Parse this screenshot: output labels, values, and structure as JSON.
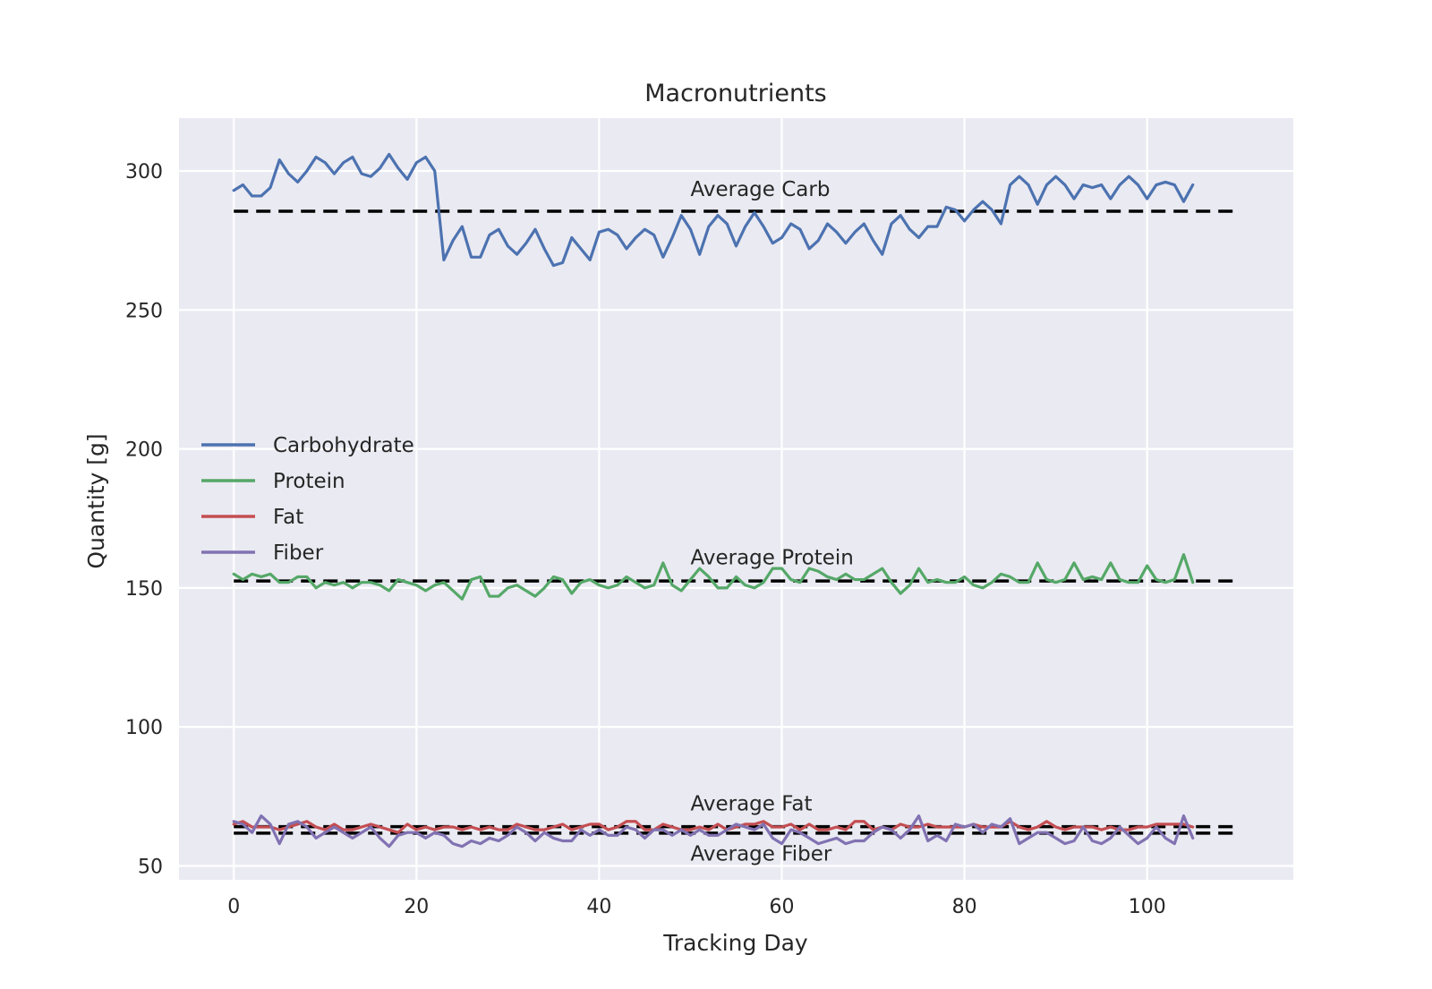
{
  "chart_data": {
    "type": "line",
    "title": "Macronutrients",
    "xlabel": "Tracking Day",
    "ylabel": "Quantity [g]",
    "xlim": [
      -6,
      116
    ],
    "ylim": [
      45,
      319
    ],
    "xticks": [
      0,
      20,
      40,
      60,
      80,
      100
    ],
    "yticks": [
      50,
      100,
      150,
      200,
      250,
      300
    ],
    "grid": true,
    "legend_position": "center-left",
    "background_color": "#eaeaf2",
    "grid_color": "#ffffff",
    "series": [
      {
        "name": "Carbohydrate",
        "color": "#4c72b0",
        "values": [
          293,
          295,
          291,
          291,
          294,
          304,
          299,
          296,
          300,
          305,
          303,
          299,
          303,
          305,
          299,
          298,
          301,
          306,
          301,
          297,
          303,
          305,
          300,
          268,
          275,
          280,
          269,
          269,
          277,
          279,
          273,
          270,
          274,
          279,
          272,
          266,
          267,
          276,
          272,
          268,
          278,
          279,
          277,
          272,
          276,
          279,
          277,
          269,
          276,
          284,
          279,
          270,
          280,
          284,
          281,
          273,
          280,
          285,
          280,
          274,
          276,
          281,
          279,
          272,
          275,
          281,
          278,
          274,
          278,
          281,
          275,
          270,
          281,
          284,
          279,
          276,
          280,
          280,
          287,
          286,
          282,
          286,
          289,
          286,
          281,
          295,
          298,
          295,
          288,
          295,
          298,
          295,
          290,
          295,
          294,
          295,
          290,
          295,
          298,
          295,
          290,
          295,
          296,
          295,
          289,
          295
        ]
      },
      {
        "name": "Protein",
        "color": "#55a868",
        "values": [
          155,
          153,
          155,
          154,
          155,
          152,
          152,
          154,
          154,
          150,
          152,
          151,
          152,
          150,
          152,
          152,
          151,
          149,
          153,
          152,
          151,
          149,
          151,
          152,
          149,
          146,
          153,
          154,
          147,
          147,
          150,
          151,
          149,
          147,
          150,
          154,
          153,
          148,
          152,
          153,
          151,
          150,
          151,
          154,
          152,
          150,
          151,
          159,
          151,
          149,
          153,
          157,
          154,
          150,
          150,
          154,
          151,
          150,
          152,
          157,
          157,
          153,
          152,
          157,
          156,
          154,
          153,
          155,
          153,
          153,
          155,
          157,
          152,
          148,
          151,
          157,
          152,
          153,
          152,
          152,
          154,
          151,
          150,
          152,
          155,
          154,
          152,
          152,
          159,
          153,
          152,
          153,
          159,
          153,
          154,
          153,
          159,
          153,
          152,
          152,
          158,
          153,
          152,
          153,
          162,
          152
        ]
      },
      {
        "name": "Fat",
        "color": "#c44e52",
        "values": [
          65,
          66,
          64,
          64,
          64,
          63,
          64,
          65,
          66,
          64,
          63,
          65,
          63,
          63,
          64,
          65,
          64,
          63,
          62,
          65,
          63,
          64,
          63,
          64,
          64,
          63,
          64,
          63,
          64,
          63,
          63,
          65,
          64,
          63,
          63,
          64,
          65,
          63,
          64,
          65,
          65,
          63,
          64,
          66,
          66,
          63,
          63,
          65,
          64,
          63,
          63,
          64,
          63,
          65,
          63,
          64,
          65,
          65,
          66,
          64,
          64,
          65,
          63,
          65,
          63,
          63,
          64,
          63,
          66,
          66,
          63,
          64,
          63,
          65,
          64,
          64,
          65,
          64,
          64,
          64,
          64,
          65,
          64,
          64,
          64,
          66,
          64,
          63,
          64,
          66,
          64,
          63,
          64,
          64,
          64,
          63,
          64,
          63,
          63,
          64,
          64,
          65,
          65,
          65,
          65,
          64
        ]
      },
      {
        "name": "Fiber",
        "color": "#8172b2",
        "values": [
          66,
          65,
          62,
          68,
          65,
          58,
          65,
          66,
          64,
          60,
          62,
          64,
          62,
          60,
          62,
          64,
          60,
          57,
          61,
          62,
          62,
          60,
          62,
          61,
          58,
          57,
          59,
          58,
          60,
          59,
          61,
          64,
          62,
          59,
          62,
          60,
          59,
          59,
          63,
          61,
          63,
          61,
          61,
          64,
          63,
          60,
          63,
          63,
          61,
          63,
          61,
          63,
          61,
          61,
          63,
          65,
          64,
          63,
          65,
          60,
          58,
          63,
          62,
          60,
          58,
          59,
          60,
          58,
          59,
          59,
          62,
          64,
          63,
          60,
          63,
          68,
          59,
          61,
          59,
          65,
          64,
          65,
          62,
          65,
          64,
          67,
          58,
          60,
          62,
          62,
          60,
          58,
          59,
          64,
          59,
          58,
          60,
          64,
          61,
          58,
          60,
          64,
          60,
          58,
          68,
          60
        ]
      }
    ],
    "averages": [
      {
        "name": "Average Carb",
        "label": "Average Carb",
        "value": 285.5,
        "label_x": 50,
        "label_y": 291
      },
      {
        "name": "Average Protein",
        "label": "Average Protein",
        "value": 152.5,
        "label_x": 50,
        "label_y": 158.5
      },
      {
        "name": "Average Fat",
        "label": "Average Fat",
        "value": 64.1,
        "label_x": 50,
        "label_y": 70
      },
      {
        "name": "Average Fiber",
        "label": "Average Fiber",
        "value": 61.8,
        "label_x": 50,
        "label_y": 52
      }
    ],
    "average_line_color": "#000000",
    "average_line_range": [
      0,
      110
    ]
  }
}
